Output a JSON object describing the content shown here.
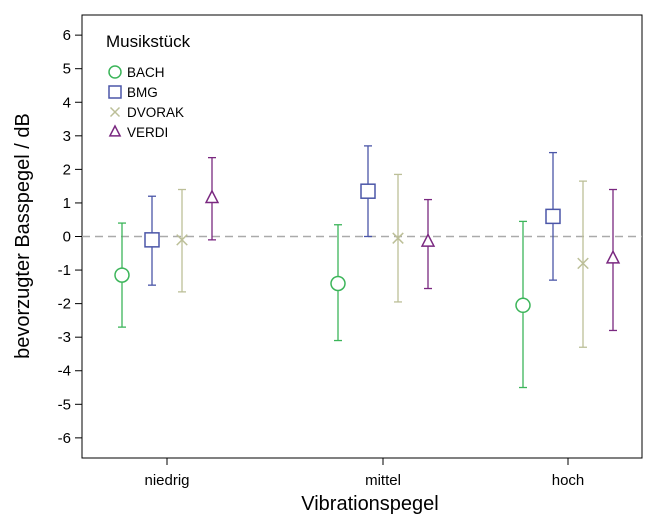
{
  "chart_data": {
    "type": "scatter",
    "subtype": "error-bar",
    "xlabel": "Vibrationspegel",
    "ylabel": "bevorzugter Basspegel / dB",
    "categories": [
      "niedrig",
      "mittel",
      "hoch"
    ],
    "ylim": [
      -6.6,
      6.6
    ],
    "yticks": [
      "6",
      "5",
      "4",
      "3",
      "2",
      "1",
      "0",
      "-1",
      "-2",
      "-3",
      "-4",
      "-5",
      "-6"
    ],
    "yticks_values": [
      6,
      5,
      4,
      3,
      2,
      1,
      0,
      -1,
      -2,
      -3,
      -4,
      -5,
      -6
    ],
    "reference_line": {
      "y": 0,
      "style": "dashed",
      "color": "#aaaaaa"
    },
    "grid": false,
    "legend": {
      "title": "Musikstück",
      "position": "top-left"
    },
    "series": [
      {
        "name": "BACH",
        "marker": "circle",
        "color": "#3cb55a",
        "values": [
          -1.15,
          -1.4,
          -2.05
        ],
        "lower": [
          -2.7,
          -3.1,
          -4.5
        ],
        "upper": [
          0.4,
          0.35,
          0.45
        ]
      },
      {
        "name": "BMG",
        "marker": "square",
        "color": "#4b56a8",
        "values": [
          -0.1,
          1.35,
          0.6
        ],
        "lower": [
          -1.45,
          0.0,
          -1.3
        ],
        "upper": [
          1.2,
          2.7,
          2.5
        ]
      },
      {
        "name": "DVORAK",
        "marker": "x",
        "color": "#bcbf98",
        "values": [
          -0.1,
          -0.05,
          -0.8
        ],
        "lower": [
          -1.65,
          -1.95,
          -3.3
        ],
        "upper": [
          1.4,
          1.85,
          1.65
        ]
      },
      {
        "name": "VERDI",
        "marker": "triangle",
        "color": "#7a2880",
        "values": [
          1.15,
          -0.15,
          -0.65
        ],
        "lower": [
          -0.1,
          -1.55,
          -2.8
        ],
        "upper": [
          2.35,
          1.1,
          1.4
        ]
      }
    ]
  }
}
